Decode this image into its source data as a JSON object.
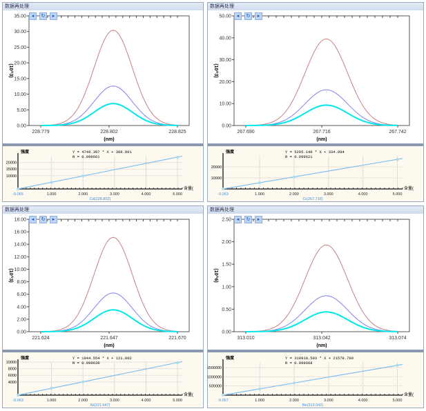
{
  "window_title": "数据再处理",
  "buttons": {
    "prev": "◂",
    "refresh": "↻",
    "next": "▸"
  },
  "chart_data": [
    {
      "type": "line",
      "title": "",
      "ylabel": "(10^3)",
      "xlabel": "(nm)",
      "ylim": [
        0,
        35
      ],
      "yticks": [
        "0.00",
        "5.00",
        "10.00",
        "15.00",
        "20.00",
        "25.00",
        "30.00",
        "35.00"
      ],
      "xticks": [
        "228.779",
        "228.802",
        "228.825"
      ],
      "series": [
        {
          "color": "#c87f7f",
          "peak": 30.4
        },
        {
          "color": "#8080f0",
          "peak": 12.6
        },
        {
          "color": "#00e8e8",
          "peak": 7.0
        }
      ],
      "calibration": {
        "equation": "Y = 4749.397 * X + 308.901",
        "r": "R = 0.999661",
        "xlabel": "Cd(228.802)",
        "ylabel": "强度",
        "xunit": "含量(",
        "ylim": [
          0,
          25000
        ],
        "yticks": [
          "10000",
          "15000",
          "20000"
        ],
        "ytick_values": [
          10000,
          15000,
          20000
        ],
        "xticks": [
          "-0.065",
          "1.000",
          "2.000",
          "3.000",
          "4.000",
          "5.000"
        ],
        "points": [
          [
            -0.065,
            0
          ],
          [
            1,
            5000
          ],
          [
            2,
            9800
          ],
          [
            5,
            23900
          ]
        ],
        "slope": 4749.397,
        "intercept": 308.901
      }
    },
    {
      "type": "line",
      "title": "",
      "ylabel": "(10^3)",
      "xlabel": "(nm)",
      "ylim": [
        0,
        50
      ],
      "yticks": [
        "0.00",
        "10.00",
        "20.00",
        "30.00",
        "40.00",
        "50.00"
      ],
      "xticks": [
        "267.690",
        "267.716",
        "267.742"
      ],
      "series": [
        {
          "color": "#c87f7f",
          "peak": 39.5
        },
        {
          "color": "#8080f0",
          "peak": 16.3
        },
        {
          "color": "#00e8e8",
          "peak": 9.3
        }
      ],
      "calibration": {
        "equation": "Y = 5295.149 * X + 334.994",
        "r": "R = 0.999621",
        "xlabel": "Cr(267.716)",
        "ylabel": "强度",
        "xunit": "含量(",
        "ylim": [
          0,
          30000
        ],
        "yticks": [
          "10000",
          "20000"
        ],
        "ytick_values": [
          10000,
          20000
        ],
        "xticks": [
          "-0.063",
          "1.000",
          "2.000",
          "3.000",
          "4.000",
          "5.000"
        ],
        "points": [
          [
            -0.063,
            0
          ],
          [
            1,
            5600
          ],
          [
            2,
            10800
          ],
          [
            5,
            26700
          ]
        ],
        "slope": 5295.149,
        "intercept": 334.994
      }
    },
    {
      "type": "line",
      "title": "",
      "ylabel": "(10^3)",
      "xlabel": "(nm)",
      "ylim": [
        0,
        18
      ],
      "yticks": [
        "0.00",
        "2.00",
        "4.00",
        "6.00",
        "8.00",
        "10.00",
        "12.00",
        "14.00",
        "16.00",
        "18.00"
      ],
      "xticks": [
        "221.624",
        "221.647",
        "221.670"
      ],
      "series": [
        {
          "color": "#c87f7f",
          "peak": 15.1
        },
        {
          "color": "#8080f0",
          "peak": 6.2
        },
        {
          "color": "#00e8e8",
          "peak": 3.5
        }
      ],
      "calibration": {
        "equation": "Y = 1944.554 * X + 121.802",
        "r": "R = 0.999639",
        "xlabel": "Ni(221.647)",
        "ylabel": "强度",
        "xunit": "含量(",
        "ylim": [
          0,
          10000
        ],
        "yticks": [
          "4000",
          "6000",
          "8000",
          "10000"
        ],
        "ytick_values": [
          4000,
          6000,
          8000,
          10000
        ],
        "xticks": [
          "-0.063",
          "1.000",
          "2.000",
          "3.000",
          "4.000",
          "5.000"
        ],
        "points": [
          [
            -0.063,
            0
          ],
          [
            1,
            2100
          ],
          [
            2,
            4000
          ],
          [
            5,
            9800
          ]
        ],
        "slope": 1944.554,
        "intercept": 121.802
      }
    },
    {
      "type": "line",
      "title": "",
      "ylabel": "(10^6)",
      "xlabel": "(nm)",
      "ylim": [
        0,
        2.5
      ],
      "yticks": [
        "0.00",
        "0.50",
        "1.00",
        "1.50",
        "2.00",
        "2.50"
      ],
      "xticks": [
        "313.010",
        "313.042",
        "313.074"
      ],
      "series": [
        {
          "color": "#c87f7f",
          "peak": 1.93
        },
        {
          "color": "#8080f0",
          "peak": 0.8
        },
        {
          "color": "#00e8e8",
          "peak": 0.44
        }
      ],
      "calibration": {
        "equation": "Y = 319918.593 * X + 21578.780",
        "r": "R = 0.999668",
        "xlabel": "Be(313.042)",
        "ylabel": "强度",
        "xunit": "含量(",
        "ylim": [
          0,
          1800000
        ],
        "yticks": [
          "500000",
          "1000000",
          "1500000"
        ],
        "ytick_values": [
          500000,
          1000000,
          1500000
        ],
        "xticks": [
          "-0.067",
          "1.000",
          "2.000",
          "3.000",
          "4.000",
          "5.000"
        ],
        "points": [
          [
            -0.067,
            0
          ],
          [
            1,
            340000
          ],
          [
            2,
            660000
          ],
          [
            5,
            1620000
          ]
        ],
        "slope": 319918.593,
        "intercept": 21578.78
      }
    }
  ]
}
